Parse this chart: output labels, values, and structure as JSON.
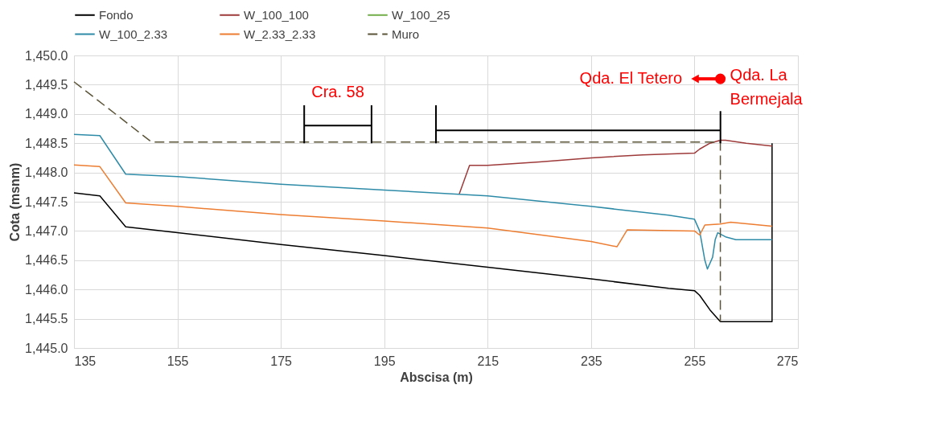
{
  "chart_data": {
    "type": "line",
    "xlabel": "Abscisa (m)",
    "ylabel": "Cota (msnm)",
    "xlim": [
      135,
      275
    ],
    "xticks": [
      135,
      155,
      175,
      195,
      215,
      235,
      255,
      275
    ],
    "ylim": [
      1445.0,
      1450.0
    ],
    "yticks": [
      {
        "value": 1445.0,
        "label": "1,445.0"
      },
      {
        "value": 1445.5,
        "label": "1,445.5"
      },
      {
        "value": 1446.0,
        "label": "1,446.0"
      },
      {
        "value": 1446.5,
        "label": "1,446.5"
      },
      {
        "value": 1447.0,
        "label": "1,447.0"
      },
      {
        "value": 1447.5,
        "label": "1,447.5"
      },
      {
        "value": 1448.0,
        "label": "1,448.0"
      },
      {
        "value": 1448.5,
        "label": "1,448.5"
      },
      {
        "value": 1449.0,
        "label": "1,449.0"
      },
      {
        "value": 1449.5,
        "label": "1,449.5"
      },
      {
        "value": 1450.0,
        "label": "1,450.0"
      }
    ],
    "grid": true,
    "legend": "top",
    "marker": "none",
    "series": [
      {
        "name": "Fondo",
        "color": "#000000",
        "line_style": "solid",
        "x": [
          135,
          140,
          145,
          155,
          175,
          195,
          215,
          235,
          250,
          255,
          256,
          258,
          259,
          260,
          270,
          270
        ],
        "values": [
          1447.65,
          1447.6,
          1447.07,
          1446.97,
          1446.77,
          1446.58,
          1446.38,
          1446.18,
          1446.02,
          1445.98,
          1445.9,
          1445.65,
          1445.55,
          1445.45,
          1445.45,
          1448.5
        ]
      },
      {
        "name": "W_100_100",
        "color": "#9e3a3a",
        "line_style": "solid",
        "x": [
          209.5,
          211.5,
          215,
          225,
          235,
          245,
          255,
          256,
          258,
          260,
          261,
          265,
          270
        ],
        "values": [
          1447.63,
          1448.12,
          1448.12,
          1448.18,
          1448.25,
          1448.3,
          1448.33,
          1448.4,
          1448.5,
          1448.55,
          1448.55,
          1448.5,
          1448.45
        ]
      },
      {
        "name": "W_100_25",
        "color": "#70ad47",
        "line_style": "solid"
      },
      {
        "name": "W_100_2.33",
        "color": "#2e8ba8",
        "line_style": "solid",
        "x": [
          135,
          140,
          145,
          155,
          175,
          195,
          215,
          235,
          250,
          255,
          256,
          257,
          257.5,
          258.5,
          259,
          259.5,
          261,
          263,
          270
        ],
        "values": [
          1448.65,
          1448.63,
          1447.97,
          1447.93,
          1447.8,
          1447.7,
          1447.6,
          1447.42,
          1447.27,
          1447.2,
          1447.0,
          1446.5,
          1446.35,
          1446.55,
          1446.85,
          1446.97,
          1446.9,
          1446.85,
          1446.85
        ]
      },
      {
        "name": "W_2.33_2.33",
        "color": "#ed7d31",
        "line_style": "solid",
        "x": [
          135,
          140,
          145,
          155,
          175,
          195,
          215,
          235,
          240,
          242,
          255,
          256,
          257,
          260,
          262,
          270
        ],
        "values": [
          1448.13,
          1448.1,
          1447.48,
          1447.42,
          1447.28,
          1447.17,
          1447.05,
          1446.82,
          1446.73,
          1447.02,
          1447.0,
          1446.93,
          1447.1,
          1447.12,
          1447.15,
          1447.08
        ]
      },
      {
        "name": "Muro",
        "color": "#5a5438",
        "line_style": "dashed",
        "x": [
          135,
          150,
          260,
          260
        ],
        "values": [
          1449.55,
          1448.52,
          1448.52,
          1445.45
        ]
      }
    ],
    "annotations": [
      "Cra. 58",
      "Qda. El Tetero",
      {
        "text": "Qda. La Bermejala",
        "x": 260,
        "y": 1449.6
      }
    ]
  }
}
